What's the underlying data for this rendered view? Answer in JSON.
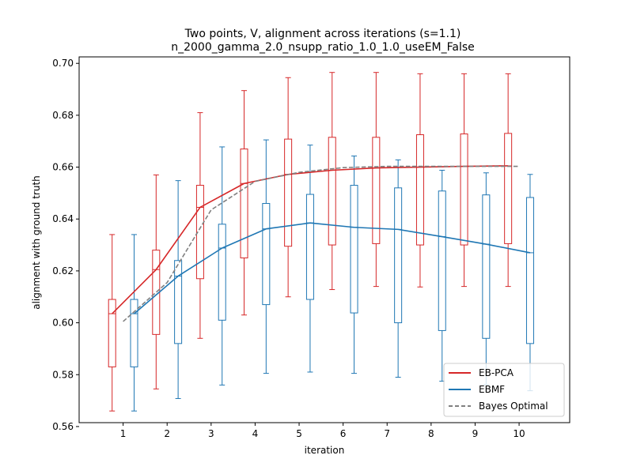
{
  "chart_data": {
    "type": "box-line",
    "title": "Two points, V, alignment across iterations (s=1.1)",
    "subtitle": "n_2000_gamma_2.0_nsupp_ratio_1.0_1.0_useEM_False",
    "xlabel": "iteration",
    "ylabel": "alignment with ground truth",
    "xlim": [
      0,
      11.15
    ],
    "ylim": [
      0.5615,
      0.7025
    ],
    "xticks": [
      1,
      2,
      3,
      4,
      5,
      6,
      7,
      8,
      9,
      10
    ],
    "xtick_labels": [
      "1",
      "2",
      "3",
      "4",
      "5",
      "6",
      "7",
      "8",
      "9",
      "10"
    ],
    "yticks": [
      0.56,
      0.58,
      0.6,
      0.62,
      0.64,
      0.66,
      0.68,
      0.7
    ],
    "ytick_labels": [
      "0.56",
      "0.58",
      "0.60",
      "0.62",
      "0.64",
      "0.66",
      "0.68",
      "0.70"
    ],
    "legend_position": "lower-right",
    "series": [
      {
        "name": "EB-PCA",
        "color": "#d62728",
        "style": "solid",
        "x": [
          0.75,
          1.75,
          2.75,
          3.75,
          4.75,
          5.75,
          6.75,
          7.75,
          8.75,
          9.75
        ],
        "line": [
          0.6035,
          0.6205,
          0.6445,
          0.6537,
          0.6572,
          0.6588,
          0.6597,
          0.66,
          0.6603,
          0.6605
        ],
        "boxes": [
          {
            "whislo": 0.566,
            "q1": 0.583,
            "med": 0.6035,
            "q3": 0.609,
            "whishi": 0.634
          },
          {
            "whislo": 0.5745,
            "q1": 0.5955,
            "med": 0.6205,
            "q3": 0.628,
            "whishi": 0.657
          },
          {
            "whislo": 0.594,
            "q1": 0.617,
            "med": 0.6445,
            "q3": 0.653,
            "whishi": 0.681
          },
          {
            "whislo": 0.603,
            "q1": 0.625,
            "med": 0.6537,
            "q3": 0.667,
            "whishi": 0.6895
          },
          {
            "whislo": 0.61,
            "q1": 0.6295,
            "med": 0.6572,
            "q3": 0.6708,
            "whishi": 0.6945
          },
          {
            "whislo": 0.6128,
            "q1": 0.63,
            "med": 0.6588,
            "q3": 0.6715,
            "whishi": 0.6965
          },
          {
            "whislo": 0.614,
            "q1": 0.6305,
            "med": 0.6597,
            "q3": 0.6715,
            "whishi": 0.6965
          },
          {
            "whislo": 0.6138,
            "q1": 0.63,
            "med": 0.66,
            "q3": 0.6725,
            "whishi": 0.696
          },
          {
            "whislo": 0.614,
            "q1": 0.63,
            "med": 0.6603,
            "q3": 0.6728,
            "whishi": 0.696
          },
          {
            "whislo": 0.614,
            "q1": 0.6305,
            "med": 0.6605,
            "q3": 0.673,
            "whishi": 0.696
          }
        ]
      },
      {
        "name": "EBMF",
        "color": "#1f77b4",
        "style": "solid",
        "x": [
          1.25,
          2.25,
          3.25,
          4.25,
          5.25,
          6.25,
          7.25,
          8.25,
          9.25,
          10.25
        ],
        "line": [
          0.6035,
          0.618,
          0.6288,
          0.6362,
          0.6385,
          0.6368,
          0.636,
          0.6332,
          0.6303,
          0.627
        ],
        "boxes": [
          {
            "whislo": 0.566,
            "q1": 0.583,
            "med": 0.6035,
            "q3": 0.609,
            "whishi": 0.634
          },
          {
            "whislo": 0.5708,
            "q1": 0.592,
            "med": 0.618,
            "q3": 0.624,
            "whishi": 0.6548
          },
          {
            "whislo": 0.576,
            "q1": 0.601,
            "med": 0.6288,
            "q3": 0.638,
            "whishi": 0.6678
          },
          {
            "whislo": 0.5805,
            "q1": 0.607,
            "med": 0.6362,
            "q3": 0.646,
            "whishi": 0.6705
          },
          {
            "whislo": 0.581,
            "q1": 0.609,
            "med": 0.6385,
            "q3": 0.6495,
            "whishi": 0.6685
          },
          {
            "whislo": 0.5805,
            "q1": 0.6038,
            "med": 0.6368,
            "q3": 0.653,
            "whishi": 0.6643
          },
          {
            "whislo": 0.579,
            "q1": 0.6,
            "med": 0.636,
            "q3": 0.652,
            "whishi": 0.6628
          },
          {
            "whislo": 0.5775,
            "q1": 0.597,
            "med": 0.6332,
            "q3": 0.6508,
            "whishi": 0.6588
          },
          {
            "whislo": 0.5762,
            "q1": 0.594,
            "med": 0.6303,
            "q3": 0.6493,
            "whishi": 0.6578
          },
          {
            "whislo": 0.5738,
            "q1": 0.592,
            "med": 0.627,
            "q3": 0.6483,
            "whishi": 0.6572
          }
        ]
      },
      {
        "name": "Bayes Optimal",
        "color": "#808080",
        "style": "dashed",
        "x": [
          1,
          2,
          3,
          4,
          5,
          6,
          7,
          8,
          9,
          10
        ],
        "line": [
          0.6005,
          0.6155,
          0.6435,
          0.6545,
          0.658,
          0.6598,
          0.6603,
          0.6603,
          0.6603,
          0.6603
        ]
      }
    ]
  }
}
